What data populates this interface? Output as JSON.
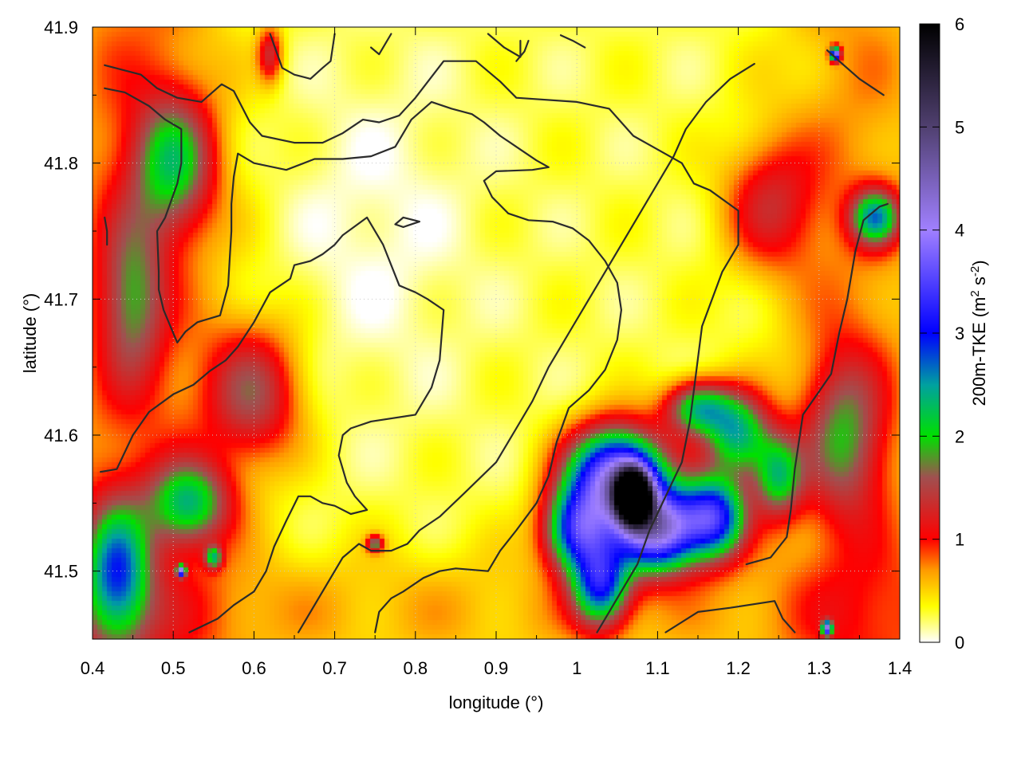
{
  "chart_data": {
    "type": "heatmap",
    "title": "",
    "xlabel": "longitude (°)",
    "ylabel": "latitude (°)",
    "xlim": [
      0.4,
      1.4
    ],
    "ylim": [
      41.45,
      41.9
    ],
    "xticks": [
      "0.4",
      "0.5",
      "0.6",
      "0.7",
      "0.8",
      "0.9",
      "1",
      "1.1",
      "1.2",
      "1.3",
      "1.4"
    ],
    "yticks": [
      "41.5",
      "41.6",
      "41.7",
      "41.8",
      "41.9"
    ],
    "xtick_values": [
      0.4,
      0.5,
      0.6,
      0.7,
      0.8,
      0.9,
      1.0,
      1.1,
      1.2,
      1.3,
      1.4
    ],
    "ytick_values": [
      41.5,
      41.6,
      41.7,
      41.8,
      41.9
    ],
    "grid": true,
    "colorbar": {
      "label_main": "200m-TKE (m",
      "label_sup1": "2",
      "label_mid": " s",
      "label_sup2": "-2",
      "label_end": ")",
      "range": [
        0,
        6
      ],
      "ticks": [
        "0",
        "1",
        "2",
        "3",
        "4",
        "5",
        "6"
      ],
      "tick_values": [
        0,
        1,
        2,
        3,
        4,
        5,
        6
      ],
      "stops": [
        {
          "v": 0.0,
          "color": "#ffffff"
        },
        {
          "v": 0.35,
          "color": "#ffff00"
        },
        {
          "v": 0.7,
          "color": "#ff9a00"
        },
        {
          "v": 1.0,
          "color": "#ff0000"
        },
        {
          "v": 1.6,
          "color": "#a05050"
        },
        {
          "v": 2.0,
          "color": "#00e000"
        },
        {
          "v": 2.5,
          "color": "#00a0a0"
        },
        {
          "v": 3.0,
          "color": "#0000ff"
        },
        {
          "v": 4.0,
          "color": "#a080ff"
        },
        {
          "v": 5.0,
          "color": "#504070"
        },
        {
          "v": 6.0,
          "color": "#000000"
        }
      ]
    },
    "tke_features": [
      {
        "lon": 1.07,
        "lat": 41.555,
        "peak": 5.9,
        "sx": 0.02,
        "sy": 0.018
      },
      {
        "lon": 1.05,
        "lat": 41.57,
        "peak": 3.8,
        "sx": 0.06,
        "sy": 0.035
      },
      {
        "lon": 1.1,
        "lat": 41.53,
        "peak": 3.6,
        "sx": 0.05,
        "sy": 0.03
      },
      {
        "lon": 1.0,
        "lat": 41.53,
        "peak": 2.6,
        "sx": 0.04,
        "sy": 0.03
      },
      {
        "lon": 1.17,
        "lat": 41.54,
        "peak": 2.8,
        "sx": 0.04,
        "sy": 0.03
      },
      {
        "lon": 1.2,
        "lat": 41.6,
        "peak": 2.0,
        "sx": 0.04,
        "sy": 0.03
      },
      {
        "lon": 1.03,
        "lat": 41.49,
        "peak": 2.4,
        "sx": 0.035,
        "sy": 0.03
      },
      {
        "lon": 1.15,
        "lat": 41.62,
        "peak": 1.9,
        "sx": 0.04,
        "sy": 0.02
      },
      {
        "lon": 1.25,
        "lat": 41.57,
        "peak": 1.7,
        "sx": 0.03,
        "sy": 0.03
      },
      {
        "lon": 0.43,
        "lat": 41.5,
        "peak": 1.9,
        "sx": 0.04,
        "sy": 0.05
      },
      {
        "lon": 0.52,
        "lat": 41.55,
        "peak": 1.7,
        "sx": 0.05,
        "sy": 0.03
      },
      {
        "lon": 0.5,
        "lat": 41.8,
        "peak": 1.5,
        "sx": 0.05,
        "sy": 0.05
      },
      {
        "lon": 0.6,
        "lat": 41.63,
        "peak": 1.2,
        "sx": 0.06,
        "sy": 0.05
      },
      {
        "lon": 0.45,
        "lat": 41.7,
        "peak": 1.1,
        "sx": 0.04,
        "sy": 0.06
      },
      {
        "lon": 1.37,
        "lat": 41.76,
        "peak": 1.9,
        "sx": 0.03,
        "sy": 0.02
      },
      {
        "lon": 1.33,
        "lat": 41.6,
        "peak": 1.2,
        "sx": 0.05,
        "sy": 0.06
      },
      {
        "lon": 1.24,
        "lat": 41.77,
        "peak": 0.9,
        "sx": 0.06,
        "sy": 0.05
      },
      {
        "lon": 1.32,
        "lat": 41.88,
        "peak": 3.6,
        "sx": 0.006,
        "sy": 0.005
      },
      {
        "lon": 1.31,
        "lat": 41.458,
        "peak": 3.2,
        "sx": 0.006,
        "sy": 0.005
      },
      {
        "lon": 0.51,
        "lat": 41.5,
        "peak": 3.2,
        "sx": 0.005,
        "sy": 0.004
      },
      {
        "lon": 0.75,
        "lat": 41.52,
        "peak": 1.4,
        "sx": 0.01,
        "sy": 0.006
      },
      {
        "lon": 0.55,
        "lat": 41.51,
        "peak": 1.5,
        "sx": 0.01,
        "sy": 0.008
      },
      {
        "lon": 0.62,
        "lat": 41.88,
        "peak": 1.0,
        "sx": 0.015,
        "sy": 0.02
      }
    ],
    "contours": [
      [
        [
          0.415,
          41.872
        ],
        [
          0.46,
          41.865
        ],
        [
          0.48,
          41.855
        ],
        [
          0.505,
          41.848
        ],
        [
          0.535,
          41.845
        ],
        [
          0.56,
          41.858
        ],
        [
          0.575,
          41.853
        ],
        [
          0.595,
          41.83
        ],
        [
          0.61,
          41.82
        ],
        [
          0.65,
          41.815
        ],
        [
          0.685,
          41.815
        ],
        [
          0.71,
          41.822
        ],
        [
          0.735,
          41.832
        ],
        [
          0.755,
          41.83
        ],
        [
          0.78,
          41.835
        ],
        [
          0.8,
          41.848
        ],
        [
          0.835,
          41.875
        ],
        [
          0.855,
          41.875
        ],
        [
          0.875,
          41.875
        ],
        [
          0.905,
          41.86
        ],
        [
          0.925,
          41.848
        ],
        [
          1.0,
          41.845
        ],
        [
          1.04,
          41.84
        ],
        [
          1.07,
          41.82
        ],
        [
          1.1,
          41.81
        ],
        [
          1.13,
          41.8
        ],
        [
          1.145,
          41.785
        ],
        [
          1.165,
          41.78
        ],
        [
          1.2,
          41.765
        ],
        [
          1.2,
          41.74
        ],
        [
          1.18,
          41.72
        ],
        [
          1.155,
          41.68
        ],
        [
          1.14,
          41.61
        ],
        [
          1.13,
          41.58
        ],
        [
          1.11,
          41.555
        ],
        [
          1.09,
          41.53
        ],
        [
          1.075,
          41.505
        ],
        [
          1.06,
          41.49
        ],
        [
          1.04,
          41.47
        ],
        [
          1.025,
          41.455
        ]
      ],
      [
        [
          0.415,
          41.855
        ],
        [
          0.44,
          41.852
        ],
        [
          0.47,
          41.842
        ],
        [
          0.49,
          41.832
        ],
        [
          0.51,
          41.825
        ],
        [
          0.51,
          41.8
        ],
        [
          0.505,
          41.785
        ],
        [
          0.49,
          41.76
        ],
        [
          0.48,
          41.75
        ],
        [
          0.482,
          41.72
        ],
        [
          0.482,
          41.707
        ],
        [
          0.488,
          41.692
        ],
        [
          0.5,
          41.675
        ],
        [
          0.505,
          41.668
        ],
        [
          0.515,
          41.676
        ],
        [
          0.53,
          41.683
        ],
        [
          0.558,
          41.688
        ],
        [
          0.568,
          41.71
        ],
        [
          0.57,
          41.73
        ],
        [
          0.572,
          41.75
        ],
        [
          0.572,
          41.77
        ],
        [
          0.575,
          41.79
        ],
        [
          0.58,
          41.807
        ],
        [
          0.6,
          41.8
        ],
        [
          0.64,
          41.795
        ],
        [
          0.675,
          41.803
        ],
        [
          0.71,
          41.803
        ],
        [
          0.745,
          41.805
        ],
        [
          0.775,
          41.812
        ],
        [
          0.795,
          41.832
        ],
        [
          0.82,
          41.845
        ],
        [
          0.845,
          41.84
        ],
        [
          0.87,
          41.836
        ],
        [
          0.885,
          41.83
        ],
        [
          0.905,
          41.82
        ],
        [
          0.925,
          41.812
        ],
        [
          0.95,
          41.802
        ],
        [
          0.965,
          41.797
        ],
        [
          0.945,
          41.795
        ],
        [
          0.9,
          41.794
        ],
        [
          0.885,
          41.787
        ],
        [
          0.895,
          41.775
        ],
        [
          0.915,
          41.763
        ],
        [
          0.94,
          41.758
        ],
        [
          0.97,
          41.757
        ],
        [
          0.995,
          41.752
        ],
        [
          1.015,
          41.743
        ],
        [
          1.035,
          41.728
        ],
        [
          1.05,
          41.712
        ],
        [
          1.055,
          41.692
        ],
        [
          1.05,
          41.67
        ],
        [
          1.035,
          41.648
        ],
        [
          1.015,
          41.633
        ],
        [
          0.99,
          41.62
        ],
        [
          0.975,
          41.595
        ],
        [
          0.965,
          41.57
        ],
        [
          0.95,
          41.55
        ],
        [
          0.925,
          41.53
        ],
        [
          0.905,
          41.515
        ],
        [
          0.89,
          41.5
        ],
        [
          0.85,
          41.502
        ],
        [
          0.83,
          41.5
        ],
        [
          0.81,
          41.495
        ],
        [
          0.785,
          41.485
        ],
        [
          0.77,
          41.48
        ],
        [
          0.755,
          41.47
        ],
        [
          0.75,
          41.455
        ]
      ],
      [
        [
          0.41,
          41.573
        ],
        [
          0.43,
          41.575
        ],
        [
          0.45,
          41.6
        ],
        [
          0.47,
          41.617
        ],
        [
          0.5,
          41.63
        ],
        [
          0.525,
          41.637
        ],
        [
          0.545,
          41.647
        ],
        [
          0.565,
          41.655
        ],
        [
          0.58,
          41.665
        ],
        [
          0.6,
          41.683
        ],
        [
          0.62,
          41.705
        ],
        [
          0.645,
          41.715
        ],
        [
          0.65,
          41.725
        ],
        [
          0.67,
          41.728
        ],
        [
          0.685,
          41.733
        ],
        [
          0.7,
          41.74
        ],
        [
          0.71,
          41.747
        ],
        [
          0.74,
          41.76
        ],
        [
          0.76,
          41.74
        ],
        [
          0.78,
          41.71
        ],
        [
          0.8,
          41.705
        ],
        [
          0.815,
          41.7
        ],
        [
          0.835,
          41.692
        ],
        [
          0.83,
          41.655
        ],
        [
          0.82,
          41.635
        ],
        [
          0.8,
          41.615
        ],
        [
          0.745,
          41.61
        ],
        [
          0.72,
          41.605
        ],
        [
          0.71,
          41.6
        ],
        [
          0.705,
          41.585
        ],
        [
          0.715,
          41.565
        ],
        [
          0.725,
          41.555
        ],
        [
          0.74,
          41.545
        ],
        [
          0.72,
          41.542
        ],
        [
          0.7,
          41.548
        ],
        [
          0.685,
          41.55
        ],
        [
          0.67,
          41.555
        ],
        [
          0.655,
          41.555
        ],
        [
          0.64,
          41.537
        ],
        [
          0.625,
          41.518
        ],
        [
          0.615,
          41.5
        ],
        [
          0.6,
          41.485
        ],
        [
          0.575,
          41.475
        ],
        [
          0.555,
          41.465
        ],
        [
          0.52,
          41.455
        ]
      ],
      [
        [
          0.655,
          41.455
        ],
        [
          0.665,
          41.465
        ],
        [
          0.69,
          41.49
        ],
        [
          0.71,
          41.51
        ],
        [
          0.73,
          41.52
        ],
        [
          0.745,
          41.515
        ],
        [
          0.77,
          41.515
        ],
        [
          0.79,
          41.52
        ],
        [
          0.805,
          41.53
        ],
        [
          0.83,
          41.54
        ],
        [
          0.86,
          41.557
        ],
        [
          0.9,
          41.58
        ],
        [
          0.925,
          41.605
        ],
        [
          0.945,
          41.625
        ],
        [
          0.965,
          41.65
        ],
        [
          0.98,
          41.665
        ],
        [
          0.995,
          41.68
        ],
        [
          1.01,
          41.695
        ],
        [
          1.025,
          41.71
        ],
        [
          1.04,
          41.725
        ],
        [
          1.055,
          41.74
        ],
        [
          1.075,
          41.76
        ],
        [
          1.095,
          41.78
        ],
        [
          1.12,
          41.805
        ],
        [
          1.135,
          41.825
        ],
        [
          1.16,
          41.845
        ],
        [
          1.19,
          41.862
        ],
        [
          1.22,
          41.873
        ]
      ],
      [
        [
          1.11,
          41.455
        ],
        [
          1.15,
          41.47
        ],
        [
          1.19,
          41.473
        ],
        [
          1.245,
          41.478
        ],
        [
          1.255,
          41.465
        ],
        [
          1.27,
          41.455
        ]
      ],
      [
        [
          1.21,
          41.505
        ],
        [
          1.24,
          41.51
        ],
        [
          1.26,
          41.525
        ],
        [
          1.265,
          41.545
        ],
        [
          1.27,
          41.575
        ],
        [
          1.28,
          41.615
        ],
        [
          1.3,
          41.632
        ],
        [
          1.315,
          41.645
        ],
        [
          1.325,
          41.675
        ],
        [
          1.335,
          41.7
        ],
        [
          1.345,
          41.735
        ],
        [
          1.355,
          41.758
        ],
        [
          1.375,
          41.768
        ],
        [
          1.385,
          41.77
        ]
      ],
      [
        [
          1.31,
          41.883
        ],
        [
          1.325,
          41.875
        ],
        [
          1.35,
          41.862
        ],
        [
          1.38,
          41.85
        ]
      ],
      [
        [
          0.415,
          41.76
        ],
        [
          0.418,
          41.75
        ],
        [
          0.418,
          41.74
        ]
      ],
      [
        [
          0.775,
          41.755
        ],
        [
          0.785,
          41.76
        ],
        [
          0.805,
          41.757
        ],
        [
          0.785,
          41.753
        ],
        [
          0.775,
          41.755
        ]
      ],
      [
        [
          0.62,
          41.895
        ],
        [
          0.635,
          41.87
        ],
        [
          0.65,
          41.865
        ],
        [
          0.67,
          41.862
        ],
        [
          0.685,
          41.87
        ],
        [
          0.695,
          41.875
        ],
        [
          0.7,
          41.895
        ]
      ],
      [
        [
          0.89,
          41.895
        ],
        [
          0.91,
          41.885
        ],
        [
          0.93,
          41.878
        ],
        [
          0.93,
          41.89
        ]
      ],
      [
        [
          0.745,
          41.885
        ],
        [
          0.755,
          41.88
        ],
        [
          0.77,
          41.895
        ]
      ],
      [
        [
          0.925,
          41.875
        ],
        [
          0.935,
          41.882
        ],
        [
          0.94,
          41.89
        ]
      ],
      [
        [
          0.98,
          41.894
        ],
        [
          0.995,
          41.89
        ],
        [
          1.01,
          41.885
        ]
      ]
    ]
  }
}
